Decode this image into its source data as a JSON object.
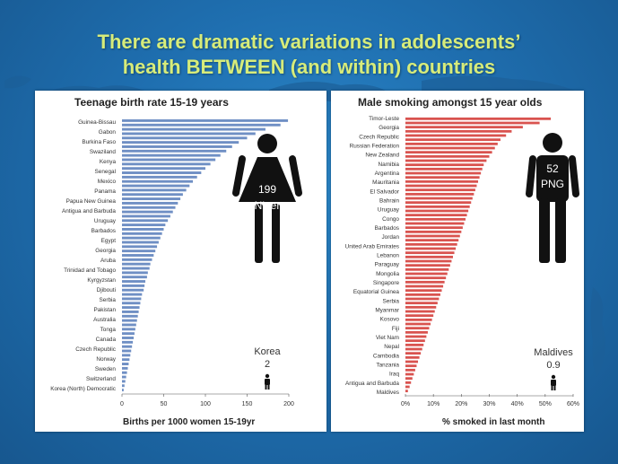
{
  "title": {
    "line1": "There are dramatic variations in adolescents’",
    "line2": "health BETWEEN (and within) countries"
  },
  "colors": {
    "left_bar": "#6f8fc4",
    "right_bar": "#d9534f",
    "title": "#d7ec7a",
    "figure": "#111111"
  },
  "chart_data": [
    {
      "type": "bar",
      "orientation": "horizontal",
      "title": "Teenage birth rate 15-19 years",
      "xlabel": "Births per 1000 women 15-19yr",
      "xlim": [
        0,
        200
      ],
      "xticks": [
        "0",
        "50",
        "100",
        "150",
        "200"
      ],
      "labeled_countries": [
        "Guinea-Bissau",
        "Gabon",
        "Burkina Faso",
        "Swaziland",
        "Kenya",
        "Senegal",
        "Mexico",
        "Panama",
        "Papua New Guinea",
        "Antigua and Barbuda",
        "Uruguay",
        "Barbados",
        "Egypt",
        "Georgia",
        "Aruba",
        "Trinidad and Tobago",
        "Kyrgyzstan",
        "Djibouti",
        "Serbia",
        "Pakistan",
        "Australia",
        "Tonga",
        "Canada",
        "Czech Republic",
        "Norway",
        "Sweden",
        "Switzerland",
        "Korea (North) Democratic"
      ],
      "series": [
        {
          "name": "Teenage birth rate",
          "values": [
            199,
            190,
            172,
            160,
            150,
            140,
            132,
            125,
            118,
            112,
            106,
            100,
            95,
            90,
            85,
            81,
            77,
            73,
            70,
            67,
            64,
            61,
            58,
            55,
            52,
            50,
            48,
            46,
            44,
            42,
            40,
            38,
            36,
            34,
            33,
            31,
            30,
            28,
            27,
            26,
            24,
            23,
            22,
            21,
            20,
            19,
            18,
            17,
            16,
            15,
            14,
            13,
            12,
            11,
            10,
            9,
            8,
            7,
            6,
            5,
            4,
            3,
            2
          ]
        }
      ],
      "callouts": {
        "high": {
          "value": "199",
          "country": "Niger"
        },
        "low": {
          "country": "Korea",
          "value": "2"
        }
      }
    },
    {
      "type": "bar",
      "orientation": "horizontal",
      "title": "Male smoking amongst 15 year olds",
      "xlabel": "% smoked in last month",
      "xlim": [
        0,
        60
      ],
      "xticks": [
        "0%",
        "10%",
        "20%",
        "30%",
        "40%",
        "50%",
        "60%"
      ],
      "labeled_countries": [
        "Timor-Leste",
        "Georgia",
        "Czech Republic",
        "Russian Federation",
        "New Zealand",
        "Namibia",
        "Argentina",
        "Mauritania",
        "El Salvador",
        "Bahrain",
        "Uruguay",
        "Congo",
        "Barbados",
        "Jordan",
        "United Arab Emirates",
        "Lebanon",
        "Paraguay",
        "Mongolia",
        "Singapore",
        "Equatorial Guinea",
        "Serbia",
        "Myanmar",
        "Kosovo",
        "Fiji",
        "Viet Nam",
        "Nepal",
        "Cambodia",
        "Tanzania",
        "Iraq",
        "Antigua and Barbuda",
        "Maldives"
      ],
      "series": [
        {
          "name": "Male smoking",
          "values": [
            52,
            48,
            42,
            38,
            36,
            34,
            33,
            32,
            31,
            30,
            29,
            28,
            27.5,
            27,
            26.5,
            26,
            25.5,
            25,
            24.5,
            24,
            23.5,
            23,
            22.5,
            22,
            21.5,
            21,
            20.5,
            20,
            19.5,
            19,
            18.5,
            18,
            17.5,
            17,
            16.5,
            16,
            15.5,
            15,
            14.5,
            14,
            13.5,
            13,
            12.5,
            12,
            11.5,
            11,
            10.5,
            10,
            9.5,
            9,
            8.5,
            8,
            7.5,
            7,
            6.5,
            6,
            5.5,
            5,
            4.5,
            4,
            3.5,
            3,
            2.5,
            2,
            1.5,
            0.9
          ]
        }
      ],
      "callouts": {
        "high": {
          "value": "52",
          "country": "PNG"
        },
        "low": {
          "country": "Maldives",
          "value": "0.9"
        }
      }
    }
  ]
}
